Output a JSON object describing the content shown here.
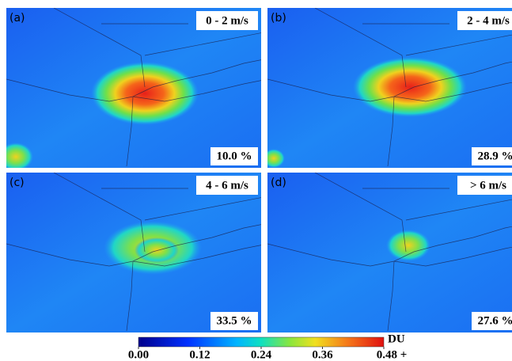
{
  "panels": [
    {
      "label": "(a)",
      "wind": "0 - 2 m/s",
      "share": "10.0 %"
    },
    {
      "label": "(b)",
      "wind": "2 - 4 m/s",
      "share": "28.9 %"
    },
    {
      "label": "(c)",
      "wind": "4 - 6 m/s",
      "share": "33.5 %"
    },
    {
      "label": "(d)",
      "wind": "> 6 m/s",
      "share": "27.6 %"
    }
  ],
  "colorbar": {
    "unit": "DU",
    "ticks": [
      {
        "value": 0,
        "label": "0.00"
      },
      {
        "value": 0.12,
        "label": "0.12"
      },
      {
        "value": 0.24,
        "label": "0.24"
      },
      {
        "value": 0.36,
        "label": "0.36"
      },
      {
        "value": 0.48,
        "label": "0.48 +"
      }
    ]
  }
}
